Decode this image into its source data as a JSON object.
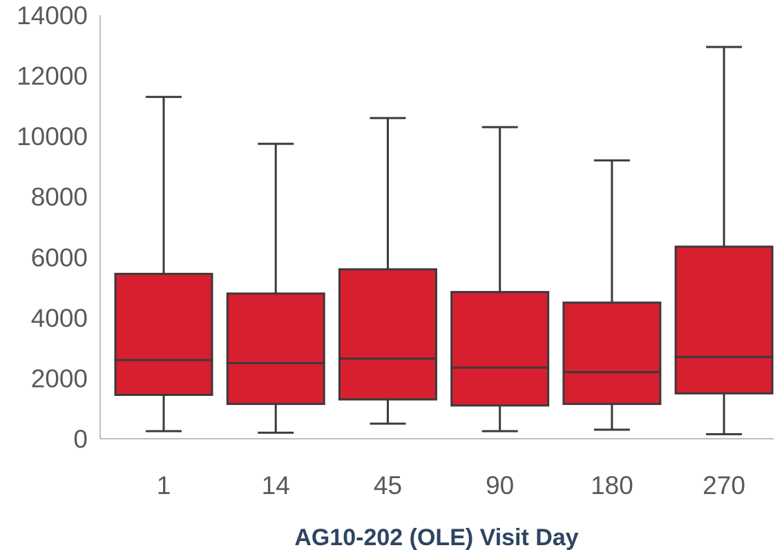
{
  "chart_data": {
    "type": "box",
    "title": "",
    "xlabel": "AG10-202 (OLE) Visit Day",
    "ylabel": "",
    "ylim": [
      0,
      14000
    ],
    "yticks": [
      0,
      2000,
      4000,
      6000,
      8000,
      10000,
      12000,
      14000
    ],
    "ytick_labels": [
      "0",
      "2000",
      "4000",
      "6000",
      "8000",
      "10000",
      "12000",
      "14000"
    ],
    "categories": [
      "1",
      "14",
      "45",
      "90",
      "180",
      "270"
    ],
    "boxes": [
      {
        "category": "1",
        "min": 250,
        "q1": 1450,
        "median": 2600,
        "q3": 5450,
        "max": 11300
      },
      {
        "category": "14",
        "min": 200,
        "q1": 1150,
        "median": 2500,
        "q3": 4800,
        "max": 9750
      },
      {
        "category": "45",
        "min": 500,
        "q1": 1300,
        "median": 2650,
        "q3": 5600,
        "max": 10600
      },
      {
        "category": "90",
        "min": 250,
        "q1": 1100,
        "median": 2350,
        "q3": 4850,
        "max": 10300
      },
      {
        "category": "180",
        "min": 300,
        "q1": 1150,
        "median": 2200,
        "q3": 4500,
        "max": 9200
      },
      {
        "category": "270",
        "min": 150,
        "q1": 1500,
        "median": 2700,
        "q3": 6350,
        "max": 12950
      }
    ],
    "grid": false,
    "legend": "none",
    "colors": {
      "box_fill": "#d71f30",
      "box_stroke": "#3a3a3a",
      "axis": "#bfbfbf",
      "tick_text": "#595959",
      "xlabel_text": "#2f4561"
    }
  }
}
